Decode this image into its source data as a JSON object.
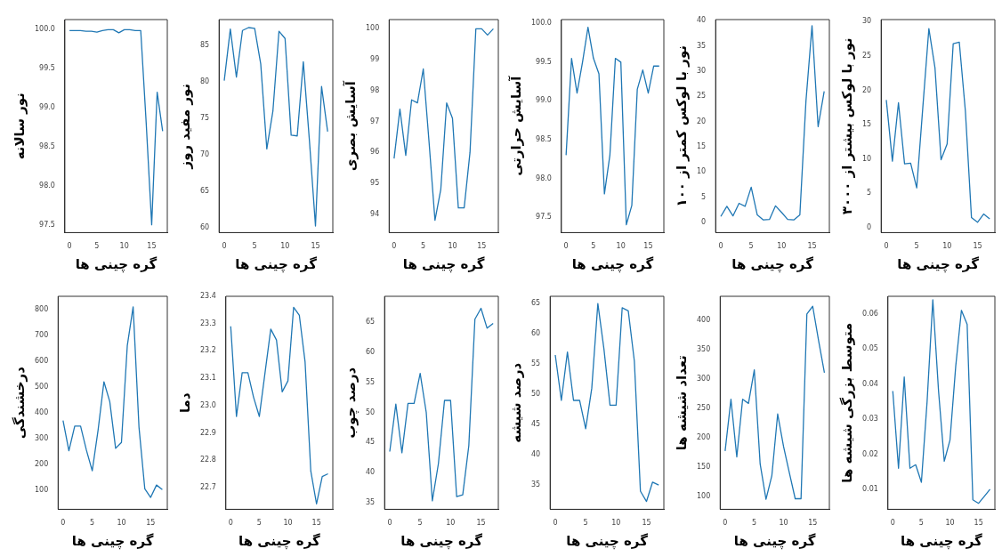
{
  "chart_data": [
    {
      "type": "line",
      "xlabel": "گره چینی ها",
      "ylabel": "نور سالانه",
      "color": "#1f77b4",
      "x": [
        0,
        1,
        2,
        3,
        4,
        5,
        6,
        7,
        8,
        9,
        10,
        11,
        12,
        13,
        14,
        15,
        16,
        17
      ],
      "values": [
        99.99,
        99.99,
        99.99,
        99.98,
        99.98,
        99.97,
        99.99,
        100,
        100,
        99.96,
        100,
        100,
        99.99,
        99.99,
        98.8,
        97.5,
        99.2,
        98.7
      ],
      "xlim": [
        -0.85,
        17.85
      ],
      "xticks": [
        0,
        5,
        10,
        15
      ],
      "ylim": [
        97.4,
        100.13
      ],
      "yticks": [
        97.5,
        {
          "value": 98,
          "label": "98.0"
        },
        98.5,
        {
          "value": 99,
          "label": "99.0"
        },
        99.5,
        {
          "value": 100,
          "label": "100.0"
        }
      ]
    },
    {
      "type": "line",
      "xlabel": "گره چینی ها",
      "ylabel": "نور مفید روز",
      "color": "#1f77b4",
      "x": [
        0,
        1,
        2,
        3,
        4,
        5,
        6,
        7,
        8,
        9,
        10,
        11,
        12,
        13,
        14,
        15,
        16,
        17
      ],
      "values": [
        80.2,
        87.3,
        80.7,
        87.1,
        87.5,
        87.4,
        82.5,
        70.8,
        76,
        87,
        86,
        72.7,
        72.6,
        82.8,
        72,
        60.2,
        79.4,
        73.2
      ],
      "xlim": [
        -0.85,
        17.85
      ],
      "xticks": [
        0,
        5,
        10,
        15
      ],
      "ylim": [
        59.3,
        88.6
      ],
      "yticks": [
        60,
        65,
        70,
        75,
        80,
        85
      ]
    },
    {
      "type": "line",
      "xlabel": "گره چینی ها",
      "ylabel": "آسایش بصری",
      "color": "#1f77b4",
      "x": [
        0,
        1,
        2,
        3,
        4,
        5,
        6,
        7,
        8,
        9,
        10,
        11,
        12,
        13,
        14,
        15,
        16,
        17
      ],
      "values": [
        95.8,
        97.4,
        95.9,
        97.7,
        97.6,
        98.7,
        96.3,
        93.8,
        94.8,
        97.6,
        97.1,
        94.2,
        94.2,
        96,
        100,
        100,
        99.8,
        100
      ],
      "xlim": [
        -0.85,
        17.85
      ],
      "xticks": [
        0,
        5,
        10,
        15
      ],
      "ylim": [
        93.4,
        100.3
      ],
      "yticks": [
        94,
        95,
        96,
        97,
        98,
        99,
        100
      ]
    },
    {
      "type": "line",
      "xlabel": "گره چینی ها",
      "ylabel": "آسایش حرارتی",
      "color": "#1f77b4",
      "x": [
        0,
        1,
        2,
        3,
        4,
        5,
        6,
        7,
        8,
        9,
        10,
        11,
        12,
        13,
        14,
        15,
        16,
        17
      ],
      "values": [
        98.3,
        99.55,
        99.1,
        99.5,
        99.95,
        99.55,
        99.35,
        97.8,
        98.3,
        99.55,
        99.5,
        97.4,
        97.65,
        99.15,
        99.4,
        99.1,
        99.45,
        99.45
      ],
      "xlim": [
        -0.85,
        17.85
      ],
      "xticks": [
        0,
        5,
        10,
        15
      ],
      "ylim": [
        97.3,
        100.05
      ],
      "yticks": [
        97.5,
        {
          "value": 98,
          "label": "98.0"
        },
        98.5,
        {
          "value": 99,
          "label": "99.0"
        },
        99.5,
        {
          "value": 100,
          "label": "100.0"
        }
      ]
    },
    {
      "type": "line",
      "xlabel": "گره چینی ها",
      "ylabel": "نور با لوکس کمتر از ۱۰۰",
      "color": "#1f77b4",
      "x": [
        0,
        1,
        2,
        3,
        4,
        5,
        6,
        7,
        8,
        9,
        10,
        11,
        12,
        13,
        14,
        15,
        16,
        17
      ],
      "values": [
        1.2,
        3.2,
        1.3,
        3.8,
        3.2,
        7,
        1.5,
        0.5,
        0.6,
        3.3,
        2,
        0.6,
        0.5,
        1.5,
        24,
        39,
        19,
        26
      ],
      "xlim": [
        -0.85,
        17.85
      ],
      "xticks": [
        0,
        5,
        10,
        15
      ],
      "ylim": [
        -2,
        40.2
      ],
      "yticks": [
        0,
        5,
        10,
        15,
        20,
        25,
        30,
        35,
        40
      ]
    },
    {
      "type": "line",
      "xlabel": "گره چینی ها",
      "ylabel": "نور با لوکس بیشتر از ۳۰۰۰",
      "color": "#1f77b4",
      "x": [
        0,
        1,
        2,
        3,
        4,
        5,
        6,
        7,
        8,
        9,
        10,
        11,
        12,
        13,
        14,
        15,
        16,
        17
      ],
      "values": [
        18.6,
        9.7,
        18.2,
        9.3,
        9.4,
        5.8,
        17.5,
        29,
        23.3,
        9.9,
        12.2,
        26.8,
        27,
        17,
        1.5,
        0.8,
        2,
        1.3
      ],
      "xlim": [
        -0.85,
        17.85
      ],
      "xticks": [
        0,
        5,
        10,
        15
      ],
      "ylim": [
        -0.7,
        30.3
      ],
      "yticks": [
        0,
        5,
        10,
        15,
        20,
        25,
        30
      ]
    },
    {
      "type": "line",
      "xlabel": "گره چینی ها",
      "ylabel": "درخشندگی",
      "color": "#1f77b4",
      "x": [
        0,
        1,
        2,
        3,
        4,
        5,
        6,
        7,
        8,
        9,
        10,
        11,
        12,
        13,
        14,
        15,
        16,
        17
      ],
      "values": [
        370,
        253,
        348,
        348,
        255,
        175,
        333,
        520,
        443,
        262,
        285,
        660,
        810,
        345,
        105,
        72,
        120,
        102
      ],
      "xlim": [
        -0.85,
        17.85
      ],
      "xticks": [
        0,
        5,
        10,
        15
      ],
      "ylim": [
        26,
        851
      ],
      "yticks": [
        100,
        200,
        300,
        400,
        500,
        600,
        700,
        800
      ]
    },
    {
      "type": "line",
      "xlabel": "گره چینی ها",
      "ylabel": "دما",
      "color": "#1f77b4",
      "x": [
        0,
        1,
        2,
        3,
        4,
        5,
        6,
        7,
        8,
        9,
        10,
        11,
        12,
        13,
        14,
        15,
        16,
        17
      ],
      "values": [
        23.29,
        22.96,
        23.12,
        23.12,
        23.03,
        22.96,
        23.12,
        23.28,
        23.24,
        23.05,
        23.09,
        23.36,
        23.33,
        23.16,
        22.76,
        22.64,
        22.74,
        22.75
      ],
      "xlim": [
        -0.85,
        17.85
      ],
      "xticks": [
        0,
        5,
        10,
        15
      ],
      "ylim": [
        22.62,
        23.4
      ],
      "yticks": [
        22.7,
        22.8,
        22.9,
        {
          "value": 23,
          "label": "23.0"
        },
        23.1,
        23.2,
        23.3,
        23.4
      ]
    },
    {
      "type": "line",
      "xlabel": "گره چینی ها",
      "ylabel": "درصد چوب",
      "color": "#1f77b4",
      "x": [
        0,
        1,
        2,
        3,
        4,
        5,
        6,
        7,
        8,
        9,
        10,
        11,
        12,
        13,
        14,
        15,
        16,
        17
      ],
      "values": [
        43.5,
        51.4,
        43.3,
        51.5,
        51.5,
        56.5,
        50,
        35.3,
        41.5,
        52,
        52,
        36,
        36.3,
        44.5,
        65.5,
        67.3,
        64,
        64.8
      ],
      "xlim": [
        -0.85,
        17.85
      ],
      "xticks": [
        0,
        5,
        10,
        15
      ],
      "ylim": [
        33.9,
        69.3
      ],
      "yticks": [
        35,
        40,
        45,
        50,
        55,
        60,
        65
      ]
    },
    {
      "type": "line",
      "xlabel": "گره چینی ها",
      "ylabel": "درصد شیشه",
      "color": "#1f77b4",
      "x": [
        0,
        1,
        2,
        3,
        4,
        5,
        6,
        7,
        8,
        9,
        10,
        11,
        12,
        13,
        14,
        15,
        16,
        17
      ],
      "values": [
        56.5,
        49,
        57,
        49,
        49,
        44.3,
        51,
        65,
        57.5,
        48.2,
        48.2,
        64.3,
        63.8,
        55.5,
        34,
        32.3,
        35.5,
        35
      ],
      "xlim": [
        -0.85,
        17.85
      ],
      "xticks": [
        0,
        5,
        10,
        15
      ],
      "ylim": [
        31,
        66.2
      ],
      "yticks": [
        35,
        40,
        45,
        50,
        55,
        60,
        65
      ]
    },
    {
      "type": "line",
      "xlabel": "گره چینی ها",
      "ylabel": "تعداد شیشه ها",
      "color": "#1f77b4",
      "x": [
        0,
        1,
        2,
        3,
        4,
        5,
        6,
        7,
        8,
        9,
        10,
        11,
        12,
        13,
        14,
        15,
        16,
        17
      ],
      "values": [
        177,
        265,
        167,
        265,
        258,
        315,
        155,
        95,
        135,
        240,
        185,
        140,
        96,
        96,
        410,
        423,
        365,
        310
      ],
      "xlim": [
        -0.85,
        17.85
      ],
      "xticks": [
        0,
        5,
        10,
        15
      ],
      "ylim": [
        78,
        440
      ],
      "yticks": [
        100,
        150,
        200,
        250,
        300,
        350,
        400
      ]
    },
    {
      "type": "line",
      "xlabel": "گره چینی ها",
      "ylabel": "متوسط بزرگی شیشه ها",
      "color": "#1f77b4",
      "x": [
        0,
        1,
        2,
        3,
        4,
        5,
        6,
        7,
        8,
        9,
        10,
        11,
        12,
        13,
        14,
        15,
        16,
        17
      ],
      "values": [
        0.038,
        0.016,
        0.042,
        0.016,
        0.017,
        0.012,
        0.035,
        0.064,
        0.038,
        0.018,
        0.024,
        0.045,
        0.061,
        0.057,
        0.007,
        0.006,
        0.008,
        0.01
      ],
      "xlim": [
        -0.85,
        17.85
      ],
      "xticks": [
        0,
        5,
        10,
        15
      ],
      "ylim": [
        0.0043,
        0.065
      ],
      "yticks": [
        0.01,
        0.02,
        0.03,
        0.04,
        0.05,
        0.06
      ]
    }
  ]
}
